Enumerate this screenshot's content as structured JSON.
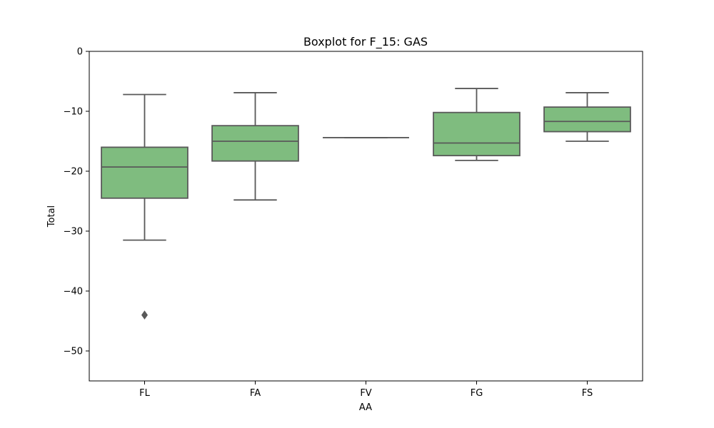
{
  "chart_data": {
    "type": "boxplot",
    "title": "Boxplot for F_15: GAS",
    "xlabel": "AA",
    "ylabel": "Total",
    "ylim": [
      -55,
      0
    ],
    "yticks": [
      0,
      -10,
      -20,
      -30,
      -40,
      -50
    ],
    "ytick_labels": [
      "0",
      "−10",
      "−20",
      "−30",
      "−40",
      "−50"
    ],
    "grid": false,
    "box_color": "#7fbc7f",
    "line_color": "#595959",
    "categories": [
      "FL",
      "FA",
      "FV",
      "FG",
      "FS"
    ],
    "boxes": [
      {
        "category": "FL",
        "whisker_low": -31.5,
        "q1": -24.5,
        "median": -19.3,
        "q3": -16.0,
        "whisker_high": -7.2,
        "outliers": [
          -44.0
        ]
      },
      {
        "category": "FA",
        "whisker_low": -24.8,
        "q1": -18.3,
        "median": -15.0,
        "q3": -12.4,
        "whisker_high": -6.9,
        "outliers": []
      },
      {
        "category": "FV",
        "whisker_low": -14.4,
        "q1": -14.4,
        "median": -14.4,
        "q3": -14.4,
        "whisker_high": -14.4,
        "outliers": []
      },
      {
        "category": "FG",
        "whisker_low": -18.2,
        "q1": -17.4,
        "median": -15.3,
        "q3": -10.2,
        "whisker_high": -6.2,
        "outliers": []
      },
      {
        "category": "FS",
        "whisker_low": -15.0,
        "q1": -13.4,
        "median": -11.7,
        "q3": -9.3,
        "whisker_high": -6.9,
        "outliers": []
      }
    ]
  }
}
